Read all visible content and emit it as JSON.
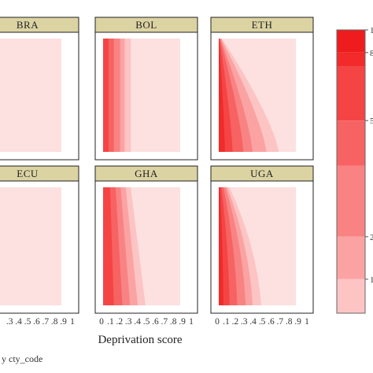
{
  "chart_data": {
    "type": "heatmap",
    "xlabel": "Deprivation score",
    "x_ticks": [
      "0",
      ".1",
      ".2",
      ".3",
      ".4",
      ".5",
      ".6",
      ".7",
      ".8",
      ".9",
      "1"
    ],
    "xlim": [
      0,
      1
    ],
    "ylim": [
      0,
      1
    ],
    "panels": [
      {
        "code": "BRA",
        "level_fractions": [
          0.86,
          0.1,
          0.06,
          0.03,
          0.02,
          0.01,
          0.0
        ],
        "shape": "flat"
      },
      {
        "code": "BOL",
        "level_fractions": [
          0.46,
          0.36,
          0.28,
          0.22,
          0.14,
          0.07,
          0.0
        ],
        "shape": "flat"
      },
      {
        "code": "ETH",
        "level_fractions": [
          0.97,
          0.78,
          0.62,
          0.44,
          0.32,
          0.18,
          0.08
        ],
        "shape": "decline"
      },
      {
        "code": "ECU",
        "level_fractions": [
          0.88,
          0.06,
          0.04,
          0.03,
          0.02,
          0.01,
          0.0
        ],
        "shape": "flat"
      },
      {
        "code": "GHA",
        "level_fractions": [
          0.62,
          0.55,
          0.45,
          0.35,
          0.25,
          0.14,
          0.0
        ],
        "shape": "mild"
      },
      {
        "code": "UGA",
        "level_fractions": [
          0.8,
          0.55,
          0.44,
          0.35,
          0.24,
          0.14,
          0.06
        ],
        "shape": "steep"
      }
    ],
    "colorbar": {
      "levels": [
        "",
        "1",
        "2",
        "",
        "5",
        "",
        "8",
        "1"
      ],
      "colors": [
        "#fee0e0",
        "#fdc4c4",
        "#fba3a3",
        "#f98383",
        "#f76262",
        "#f54444",
        "#f22a2a",
        "#ee1c1c"
      ]
    },
    "panel_color": "#fde0e0",
    "strip_color": "#dcd3a3",
    "caption": "y cty_code"
  }
}
